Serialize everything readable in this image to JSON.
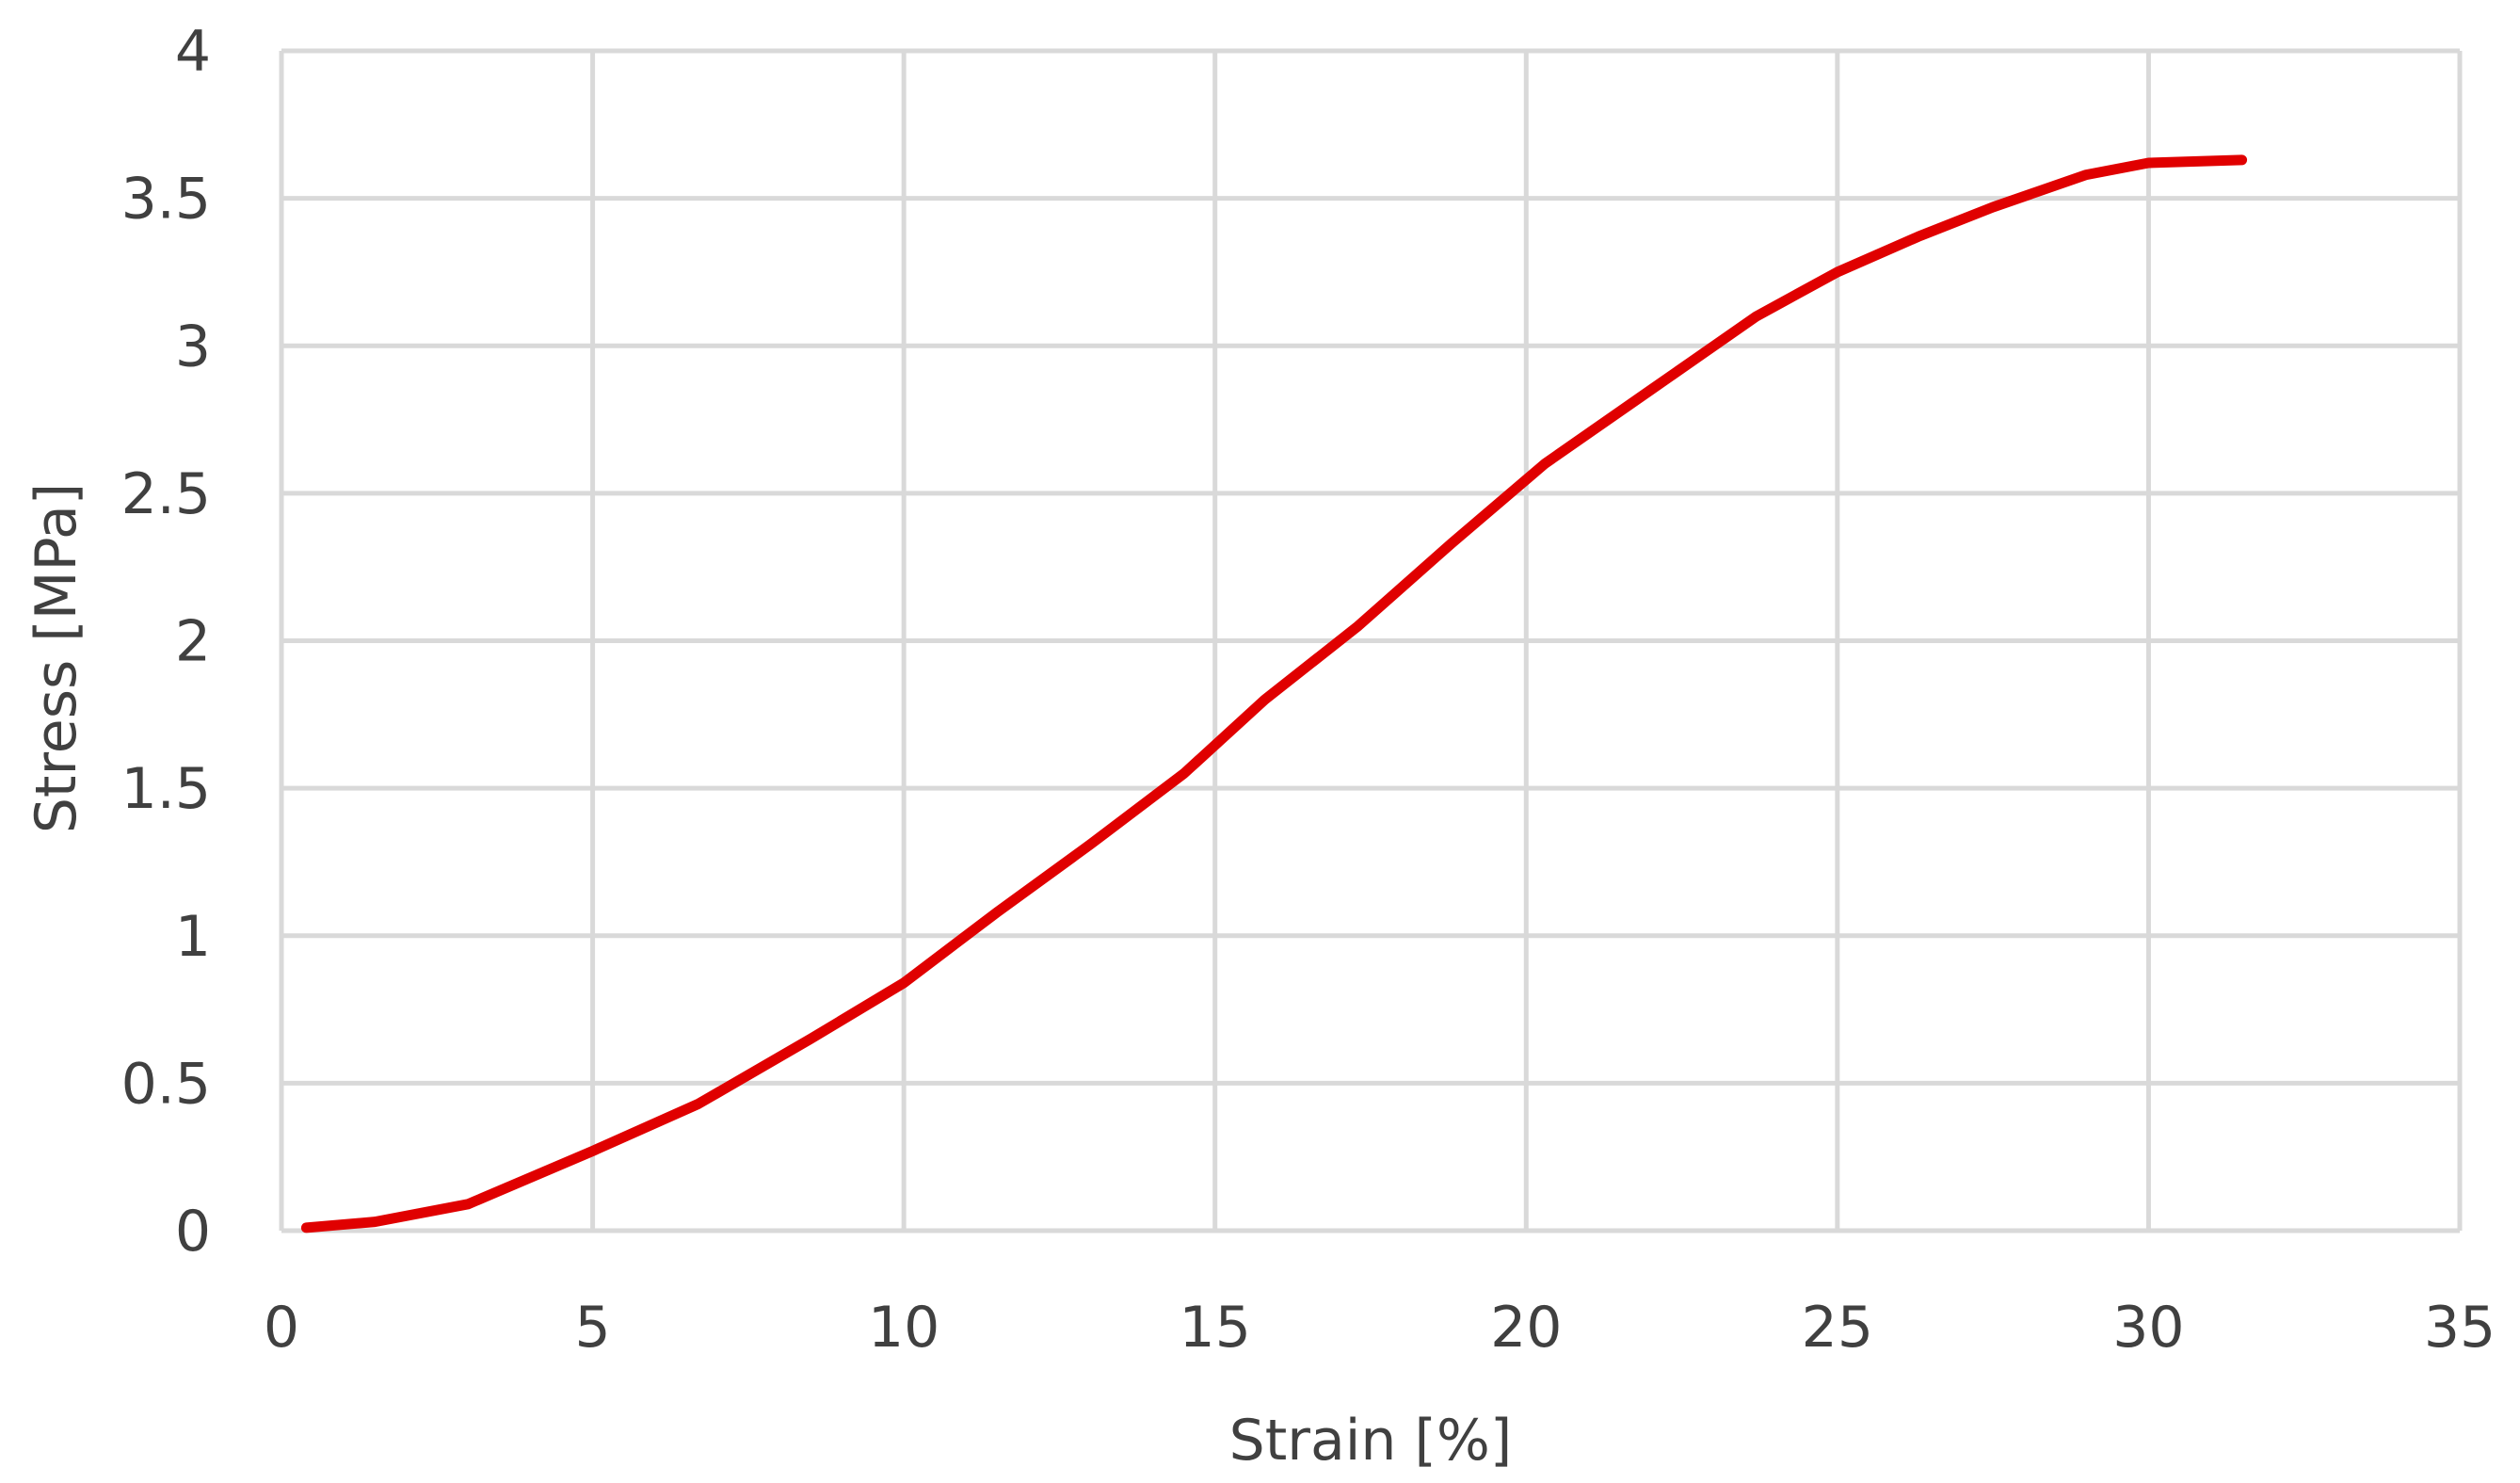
{
  "chart_data": {
    "type": "line",
    "title": "",
    "xlabel": "Strain [%]",
    "ylabel": "Stress [MPa]",
    "xlim": [
      0,
      35
    ],
    "ylim": [
      0,
      4
    ],
    "x_ticks": [
      0,
      5,
      10,
      15,
      20,
      25,
      30,
      35
    ],
    "y_ticks": [
      0,
      0.5,
      1,
      1.5,
      2,
      2.5,
      3,
      3.5,
      4
    ],
    "x_tick_labels": [
      "0",
      "5",
      "10",
      "15",
      "20",
      "25",
      "30",
      "35"
    ],
    "y_tick_labels": [
      "0",
      "0.5",
      "1",
      "1.5",
      "2",
      "2.5",
      "3",
      "3.5",
      "4"
    ],
    "grid": true,
    "legend": "none",
    "series": [
      {
        "color": "#e00000",
        "x": [
          0.4,
          1.5,
          3.0,
          5.0,
          6.7,
          8.5,
          10.0,
          11.5,
          13.0,
          14.5,
          15.8,
          17.3,
          18.8,
          20.3,
          22.0,
          23.7,
          25.0,
          26.3,
          27.5,
          29.0,
          30.0,
          31.5
        ],
        "y": [
          0.01,
          0.03,
          0.09,
          0.27,
          0.43,
          0.65,
          0.84,
          1.08,
          1.31,
          1.55,
          1.8,
          2.05,
          2.33,
          2.6,
          2.85,
          3.1,
          3.25,
          3.37,
          3.47,
          3.58,
          3.62,
          3.63
        ]
      }
    ]
  }
}
